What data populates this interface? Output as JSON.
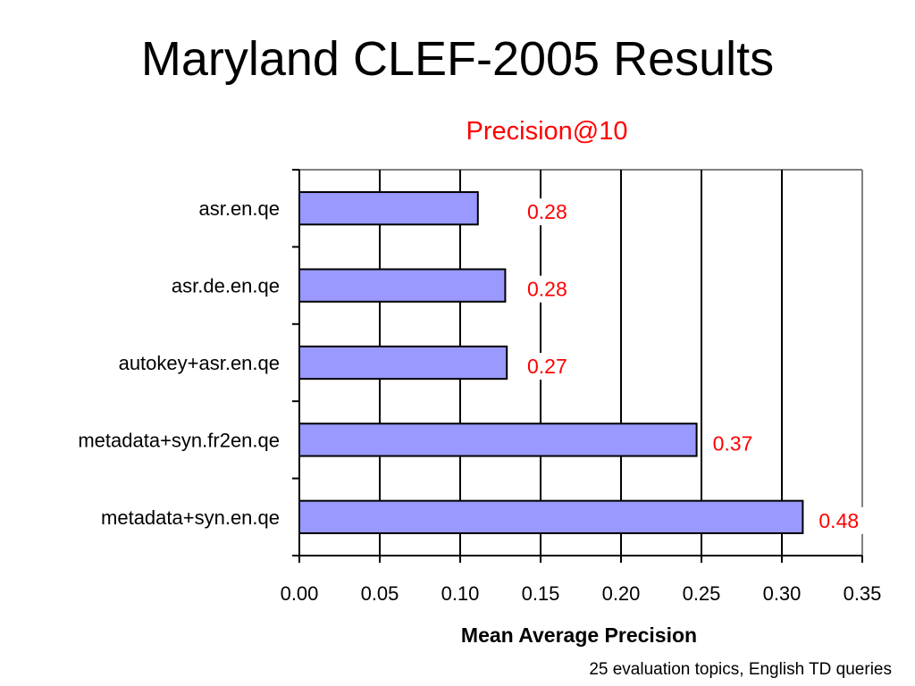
{
  "slide": {
    "title": "Maryland CLEF-2005 Results",
    "footnote": "25 evaluation topics, English TD queries"
  },
  "chart_data": {
    "type": "bar",
    "orientation": "horizontal",
    "title": "Precision@10",
    "xlabel": "Mean Average Precision",
    "ylabel": "",
    "xlim": [
      0,
      0.35
    ],
    "xticks": [
      "0.00",
      "0.05",
      "0.10",
      "0.15",
      "0.20",
      "0.25",
      "0.30",
      "0.35"
    ],
    "categories": [
      "asr.en.qe",
      "asr.de.en.qe",
      "autokey+asr.en.qe",
      "metadata+syn.fr2en.qe",
      "metadata+syn.en.qe"
    ],
    "values": [
      0.111,
      0.128,
      0.129,
      0.247,
      0.313
    ],
    "data_labels": [
      "0.28",
      "0.28",
      "0.27",
      "0.37",
      "0.48"
    ],
    "grid": true,
    "legend": "none",
    "colors": {
      "bar_fill": "#9999FF",
      "bar_stroke": "#000000",
      "label": "#FF0000",
      "chart_title": "#FF0000",
      "grid": "#000000"
    }
  }
}
